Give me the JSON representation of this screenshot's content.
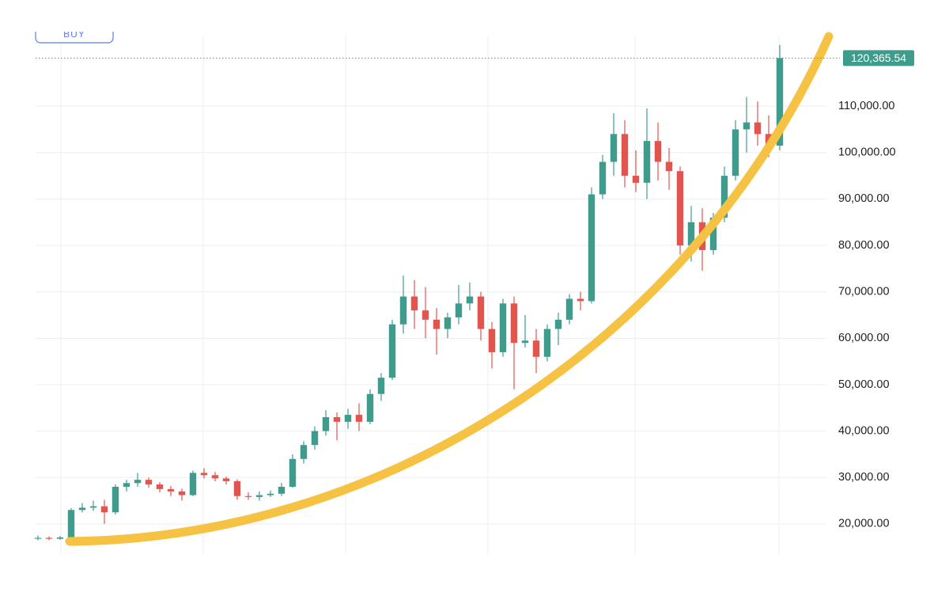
{
  "chart_data": {
    "type": "candlestick",
    "button": "BUY",
    "up_color": "#3f9c8d",
    "down_color": "#e2554f",
    "ylim": [
      13500,
      125200
    ],
    "yticks": [
      {
        "value": 20000,
        "label": "20,000.00"
      },
      {
        "value": 30000,
        "label": "30,000.00"
      },
      {
        "value": 40000,
        "label": "40,000.00"
      },
      {
        "value": 50000,
        "label": "50,000.00"
      },
      {
        "value": 60000,
        "label": "60,000.00"
      },
      {
        "value": 70000,
        "label": "70,000.00"
      },
      {
        "value": 80000,
        "label": "80,000.00"
      },
      {
        "value": 90000,
        "label": "90,000.00"
      },
      {
        "value": 100000,
        "label": "100,000.00"
      },
      {
        "value": 110000,
        "label": "110,000.00"
      }
    ],
    "grid": true,
    "last_price": 120365.54,
    "last_price_label": "120,365.54",
    "open": [
      16800,
      17000,
      16800,
      17100,
      23000,
      23500,
      23800,
      22500,
      28000,
      28800,
      29500,
      28500,
      27500,
      27000,
      26200,
      31000,
      30500,
      29800,
      29200,
      26000,
      25800,
      26200,
      26500,
      28000,
      34000,
      37000,
      40000,
      43000,
      42000,
      43500,
      42000,
      48000,
      51500,
      63000,
      69000,
      66000,
      64000,
      62000,
      64500,
      67500,
      69000,
      62000,
      57000,
      67500,
      59000,
      59500,
      56000,
      62000,
      64000,
      68500,
      68000,
      91000,
      98000,
      104000,
      95000,
      93500,
      102500,
      98000,
      96000,
      80000,
      85000,
      79000,
      86000,
      95000,
      105000,
      106500,
      104000,
      101500
    ],
    "high": [
      17500,
      17300,
      17400,
      23400,
      24500,
      25000,
      25200,
      28500,
      29500,
      31000,
      30000,
      29000,
      28200,
      27600,
      31500,
      32000,
      31200,
      30200,
      29600,
      26800,
      27000,
      27200,
      28800,
      35000,
      37800,
      41000,
      44500,
      44000,
      44800,
      46000,
      49000,
      52500,
      64000,
      73500,
      72500,
      71000,
      66500,
      65500,
      71500,
      72000,
      70000,
      63500,
      68500,
      69000,
      65000,
      62000,
      63000,
      65500,
      69500,
      70000,
      92500,
      99500,
      108500,
      107000,
      100500,
      109500,
      106500,
      101000,
      97000,
      88500,
      88000,
      87000,
      97000,
      107000,
      112000,
      111000,
      108000,
      123200
    ],
    "low": [
      16500,
      16500,
      16600,
      16900,
      22500,
      22800,
      20000,
      22000,
      27000,
      28000,
      27800,
      26800,
      26000,
      25000,
      26000,
      29800,
      29200,
      28500,
      25200,
      25200,
      25000,
      25800,
      26000,
      27800,
      33000,
      36000,
      39000,
      38000,
      40500,
      40000,
      41500,
      46500,
      51000,
      61000,
      62000,
      60000,
      56500,
      60000,
      63000,
      66000,
      59500,
      53500,
      56000,
      49000,
      58000,
      52500,
      55000,
      58500,
      63000,
      66000,
      67500,
      90000,
      95000,
      92500,
      91500,
      90000,
      94000,
      92000,
      78000,
      76500,
      74500,
      78000,
      85000,
      94000,
      100000,
      101500,
      99000,
      100500
    ],
    "close": [
      17000,
      16800,
      17100,
      23000,
      23500,
      23800,
      22500,
      28000,
      28800,
      29500,
      28500,
      27500,
      27000,
      26200,
      31000,
      30500,
      29800,
      29200,
      26000,
      25800,
      26200,
      26500,
      28000,
      34000,
      37000,
      40000,
      43000,
      42000,
      43500,
      42000,
      48000,
      51500,
      63000,
      69000,
      66000,
      64000,
      62000,
      64500,
      67500,
      69000,
      62000,
      57000,
      67500,
      59000,
      59500,
      56000,
      62000,
      64000,
      68500,
      68000,
      91000,
      98000,
      104000,
      95000,
      93500,
      102500,
      98000,
      96000,
      80000,
      85000,
      79000,
      86000,
      95000,
      105000,
      106500,
      104000,
      101500,
      120365.54
    ]
  }
}
